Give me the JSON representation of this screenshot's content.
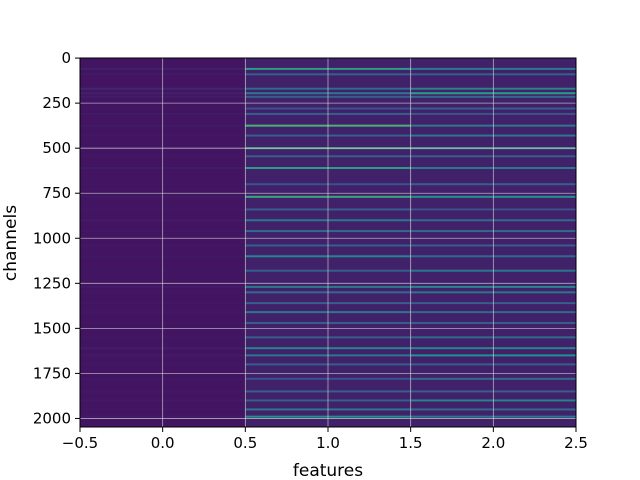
{
  "chart_data": {
    "type": "heatmap",
    "title": "",
    "xlabel": "features",
    "ylabel": "channels",
    "columns": [
      0,
      1,
      2
    ],
    "row_count": 2048,
    "xlim": [
      -0.5,
      2.5
    ],
    "ylim": [
      2047.5,
      -0.5
    ],
    "y_inverted": true,
    "grid": true,
    "colormap": "viridis",
    "x_ticks": [
      -0.5,
      0.0,
      0.5,
      1.0,
      1.5,
      2.0,
      2.5
    ],
    "x_tick_labels": [
      "−0.5",
      "0.0",
      "0.5",
      "1.0",
      "1.5",
      "2.0",
      "2.5"
    ],
    "y_ticks": [
      0,
      250,
      500,
      750,
      1000,
      1250,
      1500,
      1750,
      2000
    ],
    "y_tick_labels": [
      "0",
      "250",
      "500",
      "750",
      "1000",
      "1250",
      "1500",
      "1750",
      "2000"
    ],
    "column_base_value": [
      0.06,
      0.1,
      0.1
    ],
    "bright_rows": [
      {
        "channel": 60,
        "values": [
          0.1,
          0.55,
          0.4
        ]
      },
      {
        "channel": 90,
        "values": [
          0.08,
          0.3,
          0.3
        ]
      },
      {
        "channel": 170,
        "values": [
          0.12,
          0.35,
          0.45
        ]
      },
      {
        "channel": 195,
        "values": [
          0.1,
          0.4,
          0.55
        ]
      },
      {
        "channel": 215,
        "values": [
          0.09,
          0.3,
          0.35
        ]
      },
      {
        "channel": 280,
        "values": [
          0.07,
          0.25,
          0.3
        ]
      },
      {
        "channel": 310,
        "values": [
          0.08,
          0.3,
          0.25
        ]
      },
      {
        "channel": 375,
        "values": [
          0.08,
          0.65,
          0.4
        ]
      },
      {
        "channel": 430,
        "values": [
          0.07,
          0.3,
          0.4
        ]
      },
      {
        "channel": 500,
        "values": [
          0.09,
          0.6,
          0.55
        ]
      },
      {
        "channel": 545,
        "values": [
          0.07,
          0.3,
          0.3
        ]
      },
      {
        "channel": 610,
        "values": [
          0.08,
          0.55,
          0.4
        ]
      },
      {
        "channel": 700,
        "values": [
          0.07,
          0.25,
          0.3
        ]
      },
      {
        "channel": 770,
        "values": [
          0.08,
          0.6,
          0.5
        ]
      },
      {
        "channel": 840,
        "values": [
          0.07,
          0.3,
          0.25
        ]
      },
      {
        "channel": 900,
        "values": [
          0.08,
          0.4,
          0.35
        ]
      },
      {
        "channel": 960,
        "values": [
          0.07,
          0.35,
          0.35
        ]
      },
      {
        "channel": 1040,
        "values": [
          0.07,
          0.3,
          0.3
        ]
      },
      {
        "channel": 1100,
        "values": [
          0.07,
          0.45,
          0.35
        ]
      },
      {
        "channel": 1180,
        "values": [
          0.07,
          0.3,
          0.4
        ]
      },
      {
        "channel": 1270,
        "values": [
          0.08,
          0.4,
          0.45
        ]
      },
      {
        "channel": 1300,
        "values": [
          0.07,
          0.35,
          0.4
        ]
      },
      {
        "channel": 1360,
        "values": [
          0.07,
          0.3,
          0.3
        ]
      },
      {
        "channel": 1410,
        "values": [
          0.07,
          0.4,
          0.35
        ]
      },
      {
        "channel": 1470,
        "values": [
          0.07,
          0.3,
          0.3
        ]
      },
      {
        "channel": 1550,
        "values": [
          0.07,
          0.3,
          0.35
        ]
      },
      {
        "channel": 1610,
        "values": [
          0.09,
          0.45,
          0.45
        ]
      },
      {
        "channel": 1650,
        "values": [
          0.08,
          0.4,
          0.5
        ]
      },
      {
        "channel": 1700,
        "values": [
          0.07,
          0.3,
          0.3
        ]
      },
      {
        "channel": 1780,
        "values": [
          0.07,
          0.25,
          0.35
        ]
      },
      {
        "channel": 1850,
        "values": [
          0.07,
          0.3,
          0.3
        ]
      },
      {
        "channel": 1900,
        "values": [
          0.08,
          0.3,
          0.45
        ]
      },
      {
        "channel": 1950,
        "values": [
          0.07,
          0.4,
          0.35
        ]
      },
      {
        "channel": 1990,
        "values": [
          0.08,
          0.5,
          0.4
        ]
      }
    ]
  }
}
